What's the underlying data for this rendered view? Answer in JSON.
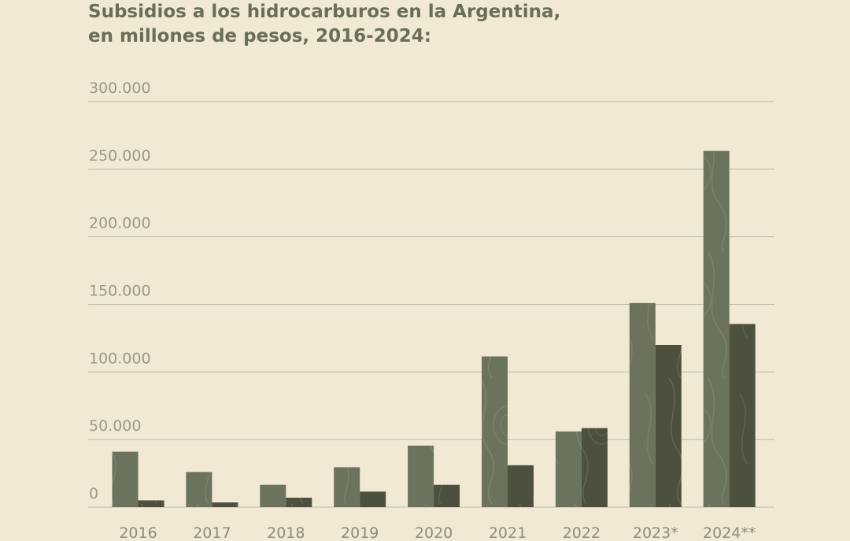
{
  "title_lines": [
    "Subsidios a los hidrocarburos en la Argentina,",
    "en millones de pesos, 2016-2024:"
  ],
  "colors": {
    "background": "#f1e9d4",
    "series_light": "#6b735c",
    "series_dark": "#4d503c",
    "grid": "#bdb9a8",
    "text": "#6b6e57"
  },
  "chart_data": {
    "type": "bar",
    "title": "Subsidios a los hidrocarburos en la Argentina, en millones de pesos, 2016-2024:",
    "categories": [
      "2016",
      "2017",
      "2018",
      "2019",
      "2020",
      "2021",
      "2022",
      "2023*",
      "2024**"
    ],
    "series": [
      {
        "values": [
          41000,
          26000,
          16500,
          29500,
          45500,
          111500,
          56000,
          151000,
          263500
        ]
      },
      {
        "values": [
          5000,
          3500,
          7000,
          11500,
          16500,
          31000,
          58500,
          120000,
          135500
        ]
      }
    ],
    "yticks": [
      "0",
      "50.000",
      "100.000",
      "150.000",
      "200.000",
      "250.000",
      "300.000"
    ],
    "ylim": [
      0,
      300000
    ],
    "grid": true,
    "legend": "none"
  }
}
